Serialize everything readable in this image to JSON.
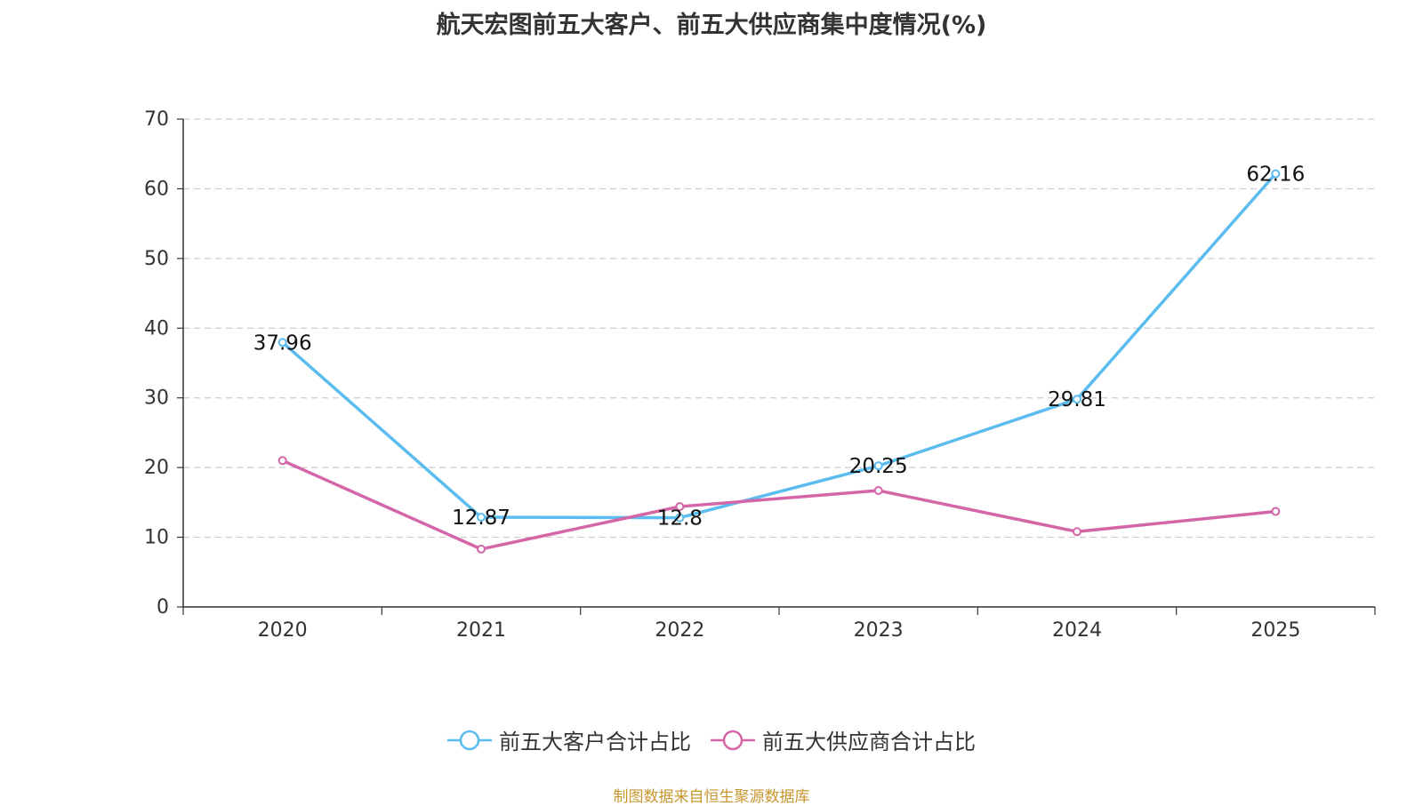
{
  "chart_data": {
    "type": "line",
    "title": "航天宏图前五大客户、前五大供应商集中度情况(%)",
    "categories": [
      "2020",
      "2021",
      "2022",
      "2023",
      "2024",
      "2025"
    ],
    "ylim": [
      0,
      70
    ],
    "yticks": [
      0,
      10,
      20,
      30,
      40,
      50,
      60,
      70
    ],
    "grid": true,
    "legend_position": "bottom",
    "series": [
      {
        "name": "前五大客户合计占比",
        "color": "#5bbcef",
        "values": [
          37.96,
          12.87,
          12.8,
          20.25,
          29.81,
          62.16
        ],
        "labels": [
          "37.96",
          "12.87",
          "12.8",
          "20.25",
          "29.81",
          "62.16"
        ]
      },
      {
        "name": "前五大供应商合计占比",
        "color": "#d466a8",
        "values": [
          21.0,
          8.3,
          14.4,
          16.7,
          10.8,
          13.7
        ],
        "labels": []
      }
    ]
  },
  "source_note": "制图数据来自恒生聚源数据库"
}
